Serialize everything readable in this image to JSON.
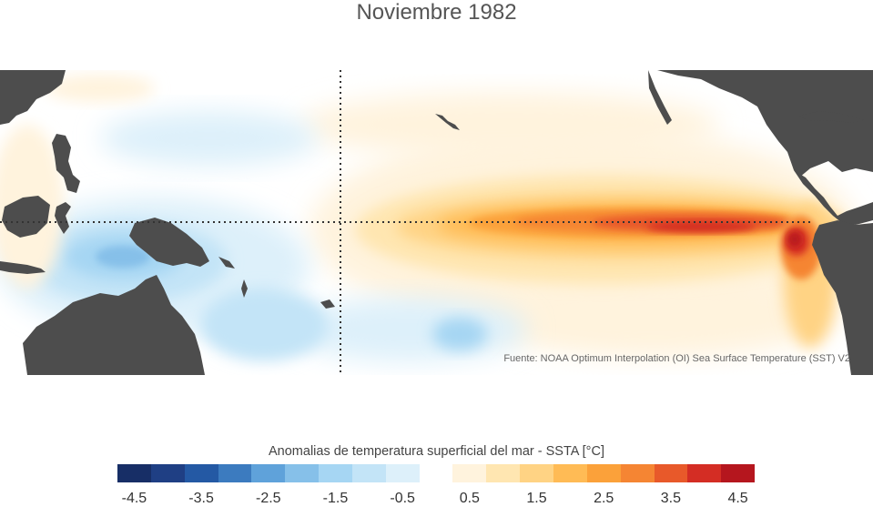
{
  "title": "Noviembre 1982",
  "source_note": "Fuente: NOAA Optimum Interpolation (OI) Sea Surface Temperature (SST) V2",
  "colorbar": {
    "label": "Anomalias de temperatura superficial del mar - SSTA  [°C]",
    "range": [
      -5,
      5
    ],
    "step": 0.5,
    "ticks": [
      "-4.5",
      "-3.5",
      "-2.5",
      "-1.5",
      "-0.5",
      "0.5",
      "1.5",
      "2.5",
      "3.5",
      "4.5"
    ],
    "tick_values": [
      -4.5,
      -3.5,
      -2.5,
      -1.5,
      -0.5,
      0.5,
      1.5,
      2.5,
      3.5,
      4.5
    ],
    "colors": [
      "#172e66",
      "#1f3f84",
      "#2459a4",
      "#3c7bbf",
      "#5fa2da",
      "#86c0e9",
      "#a6d6f3",
      "#c3e4f7",
      "#ddf0fa",
      "#ffffff",
      "#fff3dd",
      "#ffe6b1",
      "#ffd384",
      "#ffbb55",
      "#fba13a",
      "#f58533",
      "#e8592a",
      "#d42d24",
      "#b5161e"
    ]
  },
  "map": {
    "land_color": "#4d4d4d",
    "reference_lines": [
      "equator",
      "dateline"
    ]
  }
}
